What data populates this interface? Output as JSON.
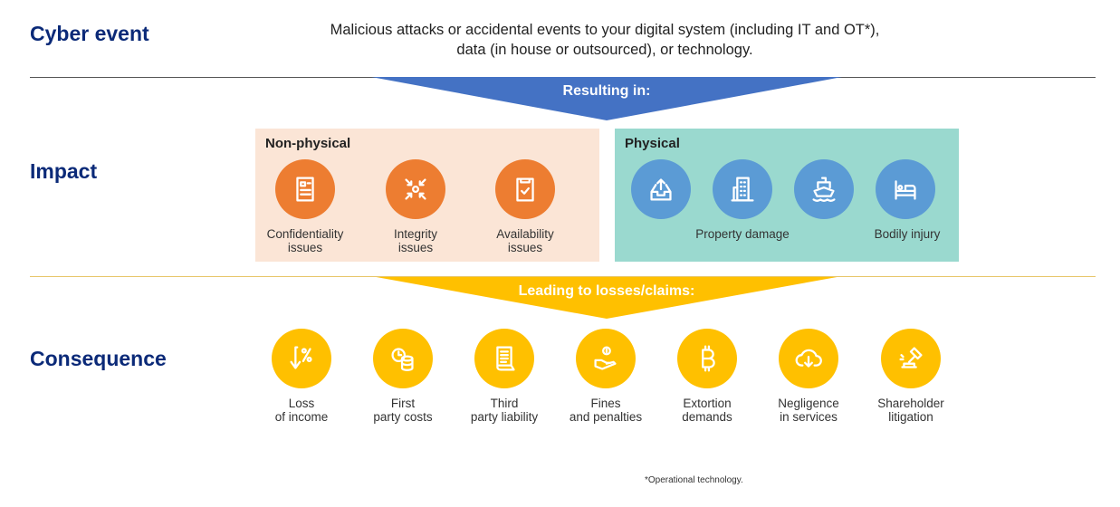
{
  "cyber_event": {
    "title": "Cyber event",
    "description_line1": "Malicious attacks or accidental events to your digital system (including IT and OT*),",
    "description_line2": "data (in house or outsourced), or technology."
  },
  "banner1": "Resulting in:",
  "impact": {
    "title": "Impact",
    "non_physical": {
      "title": "Non-physical",
      "items": [
        {
          "icon": "document-icon",
          "l1": "Confidentiality",
          "l2": "issues"
        },
        {
          "icon": "converge-arrows-icon",
          "l1": "Integrity",
          "l2": "issues"
        },
        {
          "icon": "clipboard-check-icon",
          "l1": "Availability",
          "l2": "issues"
        }
      ]
    },
    "physical": {
      "title": "Physical",
      "icons": [
        "inbox-upload-icon",
        "building-icon",
        "ship-icon",
        "bed-icon"
      ],
      "label_property": "Property damage",
      "label_bodily": "Bodily injury"
    }
  },
  "banner2": "Leading to losses/claims:",
  "consequence": {
    "title": "Consequence",
    "items": [
      {
        "icon": "percent-down-icon",
        "l1": "Loss",
        "l2": "of income"
      },
      {
        "icon": "coins-clock-icon",
        "l1": "First",
        "l2": "party costs"
      },
      {
        "icon": "scroll-icon",
        "l1": "Third",
        "l2": "party liability"
      },
      {
        "icon": "hand-coin-icon",
        "l1": "Fines",
        "l2": "and penalties"
      },
      {
        "icon": "bitcoin-icon",
        "l1": "Extortion",
        "l2": "demands"
      },
      {
        "icon": "cloud-download-icon",
        "l1": "Negligence",
        "l2": "in services"
      },
      {
        "icon": "gavel-icon",
        "l1": "Shareholder",
        "l2": "litigation"
      }
    ]
  },
  "footnote": "*Operational technology.",
  "colors": {
    "navy": "#0b2a78",
    "blue": "#4472c4",
    "orange": "#ed7d31",
    "light_blue": "#5b9bd5",
    "yellow": "#ffc000",
    "pink_bg": "#fbe5d6",
    "teal_bg": "#9ad9cf"
  }
}
